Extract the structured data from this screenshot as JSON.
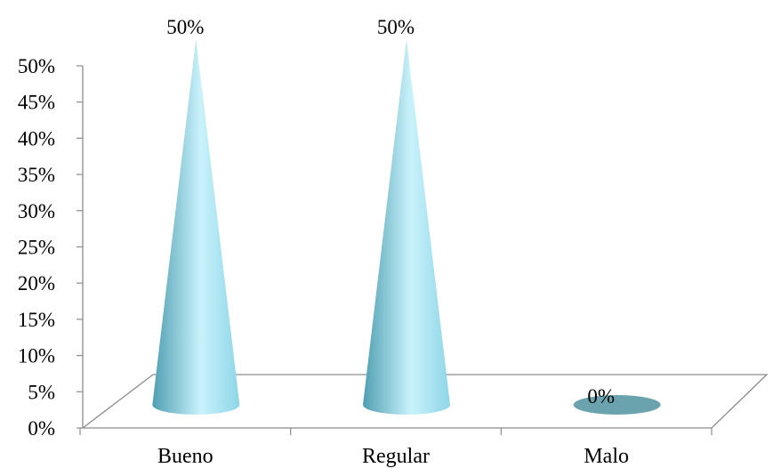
{
  "chart_data": {
    "type": "bar",
    "style": "3d-cone",
    "title": "",
    "xlabel": "",
    "ylabel": "",
    "categories": [
      "Bueno",
      "Regular",
      "Malo"
    ],
    "values": [
      50,
      50,
      0
    ],
    "data_labels": [
      "50%",
      "50%",
      "0%"
    ],
    "ylim": [
      0,
      50
    ],
    "y_ticks": [
      0,
      5,
      10,
      15,
      20,
      25,
      30,
      35,
      40,
      45,
      50
    ],
    "y_tick_labels": [
      "0%",
      "5%",
      "10%",
      "15%",
      "20%",
      "25%",
      "30%",
      "35%",
      "40%",
      "45%",
      "50%"
    ],
    "grid": false,
    "legend": "none",
    "colors": {
      "cone_light": "#c9f2fb",
      "cone_mid": "#8ed6e8",
      "cone_dark": "#4f9fb2",
      "flat_base": "#6aa3ad",
      "axis": "#8c8c8c"
    }
  }
}
